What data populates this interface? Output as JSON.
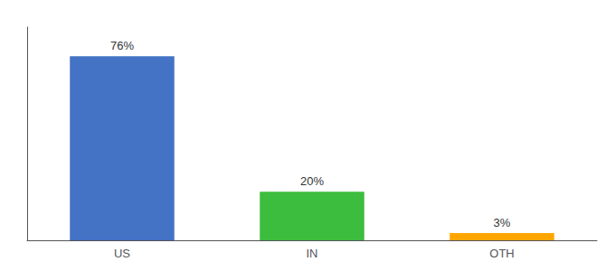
{
  "chart_data": {
    "type": "bar",
    "categories": [
      "US",
      "IN",
      "OTH"
    ],
    "values": [
      76,
      20,
      3
    ],
    "value_labels": [
      "76%",
      "20%",
      "3%"
    ],
    "colors": [
      "#4472C4",
      "#3DBD3D",
      "#FFA500"
    ],
    "ylim": [
      0,
      88
    ],
    "grid": false,
    "tick_labels": "x",
    "data_labels": true
  }
}
